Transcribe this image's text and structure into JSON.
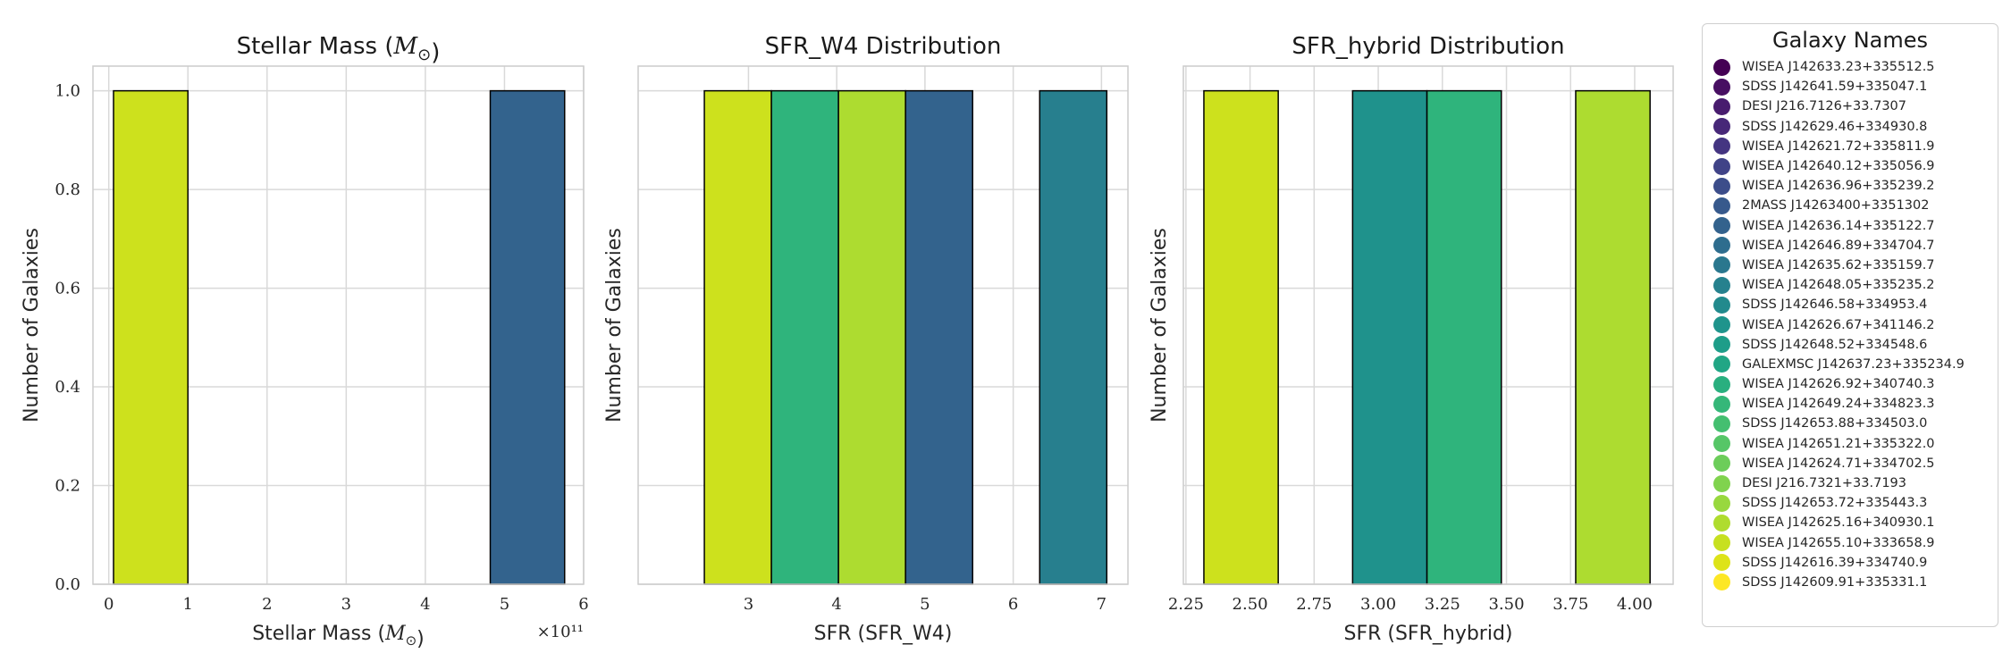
{
  "legend": {
    "title": "Galaxy Names",
    "items": [
      {
        "label": "WISEA J142633.23+335512.5",
        "color": "#440154"
      },
      {
        "label": "SDSS J142641.59+335047.1",
        "color": "#470f62"
      },
      {
        "label": "DESI J216.7126+33.7307",
        "color": "#481c6e"
      },
      {
        "label": "SDSS J142629.46+334930.8",
        "color": "#472878"
      },
      {
        "label": "WISEA J142621.72+335811.9",
        "color": "#443581"
      },
      {
        "label": "WISEA J142640.12+335056.9",
        "color": "#404387"
      },
      {
        "label": "WISEA J142636.96+335239.2",
        "color": "#3c4d8a"
      },
      {
        "label": "2MASS J14263400+3351302",
        "color": "#37598c"
      },
      {
        "label": "WISEA J142636.14+335122.7",
        "color": "#33628d"
      },
      {
        "label": "WISEA J142646.89+334704.7",
        "color": "#2e6d8e"
      },
      {
        "label": "WISEA J142635.62+335159.7",
        "color": "#2a778e"
      },
      {
        "label": "WISEA J142648.05+335235.2",
        "color": "#26818e"
      },
      {
        "label": "SDSS J142646.58+334953.4",
        "color": "#228a8d"
      },
      {
        "label": "WISEA J142626.67+341146.2",
        "color": "#1f948c"
      },
      {
        "label": "SDSS J142648.52+334548.6",
        "color": "#1e9d89"
      },
      {
        "label": "GALEXMSC J142637.23+335234.9",
        "color": "#21a685"
      },
      {
        "label": "WISEA J142626.92+340740.3",
        "color": "#29af7f"
      },
      {
        "label": "WISEA J142649.24+334823.3",
        "color": "#35b779"
      },
      {
        "label": "SDSS J142653.88+334503.0",
        "color": "#44bf70"
      },
      {
        "label": "WISEA J142651.21+335322.0",
        "color": "#56c667"
      },
      {
        "label": "WISEA J142624.71+334702.5",
        "color": "#6ccd5a"
      },
      {
        "label": "DESI J216.7321+33.7193",
        "color": "#80d34e"
      },
      {
        "label": "SDSS J142653.72+335443.3",
        "color": "#98d83e"
      },
      {
        "label": "WISEA J142625.16+340930.1",
        "color": "#afdc2e"
      },
      {
        "label": "WISEA J142655.10+333658.9",
        "color": "#c7e020"
      },
      {
        "label": "SDSS J142616.39+334740.9",
        "color": "#dde318"
      },
      {
        "label": "SDSS J142609.91+335331.1",
        "color": "#fde725"
      }
    ]
  },
  "chart_data": [
    {
      "type": "bar",
      "title": "Stellar Mass ($M_{\\odot}$)",
      "xlabel": "Stellar Mass ($M_{\\odot}$)",
      "ylabel": "Number of Galaxies",
      "xlim": [
        -0.2,
        6.0
      ],
      "ylim": [
        0,
        1.05
      ],
      "x_offset_text": "×10¹¹",
      "xticks": [
        0,
        1,
        2,
        3,
        4,
        5,
        6
      ],
      "yticks": [
        0.0,
        0.2,
        0.4,
        0.6,
        0.8,
        1.0
      ],
      "grid": true,
      "bars": [
        {
          "x0": 0.06,
          "x1": 1.0,
          "value": 1,
          "color": "#cde11d"
        },
        {
          "x0": 4.82,
          "x1": 5.76,
          "value": 1,
          "color": "#33638d"
        }
      ]
    },
    {
      "type": "bar",
      "title": "SFR_W4 Distribution",
      "xlabel": "SFR (SFR_W4)",
      "ylabel": "Number of Galaxies",
      "xlim": [
        1.75,
        7.3
      ],
      "ylim": [
        0,
        1.05
      ],
      "xticks": [
        3,
        4,
        5,
        6,
        7
      ],
      "yticks": [
        0.0,
        0.2,
        0.4,
        0.6,
        0.8,
        1.0
      ],
      "grid": true,
      "bars": [
        {
          "x0": 2.5,
          "x1": 3.26,
          "value": 1,
          "color": "#cde11d"
        },
        {
          "x0": 3.26,
          "x1": 4.02,
          "value": 1,
          "color": "#2fb47c"
        },
        {
          "x0": 4.02,
          "x1": 4.78,
          "value": 1,
          "color": "#addc30"
        },
        {
          "x0": 4.78,
          "x1": 5.54,
          "value": 1,
          "color": "#33638d"
        },
        {
          "x0": 6.3,
          "x1": 7.06,
          "value": 1,
          "color": "#277f8e"
        }
      ]
    },
    {
      "type": "bar",
      "title": "SFR_hybrid Distribution",
      "xlabel": "SFR (SFR_hybrid)",
      "ylabel": "Number of Galaxies",
      "xlim": [
        2.24,
        4.15
      ],
      "ylim": [
        0,
        1.05
      ],
      "xticks": [
        2.25,
        2.5,
        2.75,
        3.0,
        3.25,
        3.5,
        3.75,
        4.0
      ],
      "xticklabels": [
        "2.25",
        "2.50",
        "2.75",
        "3.00",
        "3.25",
        "3.50",
        "3.75",
        "4.00"
      ],
      "yticks": [
        0.0,
        0.2,
        0.4,
        0.6,
        0.8,
        1.0
      ],
      "grid": true,
      "bars": [
        {
          "x0": 2.32,
          "x1": 2.61,
          "value": 1,
          "color": "#cde11d"
        },
        {
          "x0": 2.9,
          "x1": 3.19,
          "value": 1,
          "color": "#1f928c"
        },
        {
          "x0": 3.19,
          "x1": 3.48,
          "value": 1,
          "color": "#2fb47c"
        },
        {
          "x0": 3.77,
          "x1": 4.06,
          "value": 1,
          "color": "#addc30"
        }
      ]
    }
  ]
}
